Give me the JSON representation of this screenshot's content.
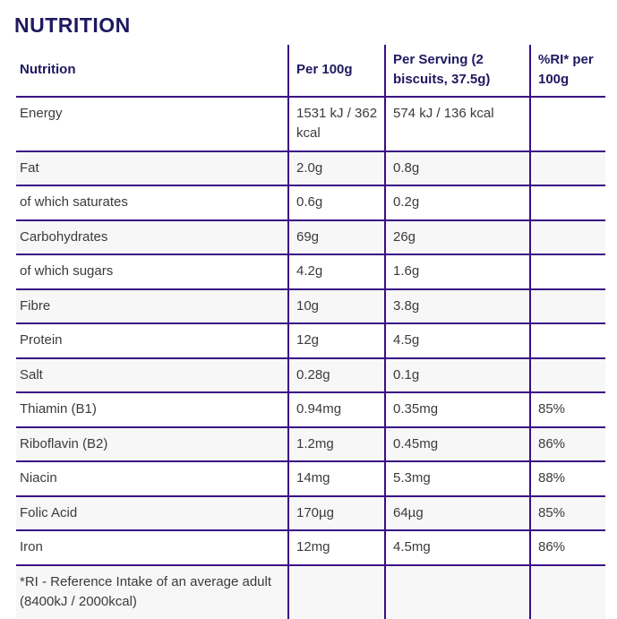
{
  "page": {
    "title": "NUTRITION"
  },
  "colors": {
    "border_purple": "#3a0e86",
    "heading_navy": "#1f1860",
    "body_text": "#3b3b3b",
    "stripe_gray": "#f7f7f7"
  },
  "table": {
    "columns": [
      "Nutrition",
      "Per 100g",
      "Per Serving (2 biscuits, 37.5g)",
      "%RI* per 100g"
    ],
    "rows": [
      {
        "label": "Energy",
        "per100g": "1531 kJ / 362 kcal",
        "perServing": "574 kJ / 136 kcal",
        "ri": ""
      },
      {
        "label": "Fat",
        "per100g": "2.0g",
        "perServing": "0.8g",
        "ri": ""
      },
      {
        "label": "of which saturates",
        "per100g": "0.6g",
        "perServing": "0.2g",
        "ri": ""
      },
      {
        "label": "Carbohydrates",
        "per100g": "69g",
        "perServing": "26g",
        "ri": ""
      },
      {
        "label": "of which sugars",
        "per100g": "4.2g",
        "perServing": "1.6g",
        "ri": ""
      },
      {
        "label": "Fibre",
        "per100g": "10g",
        "perServing": "3.8g",
        "ri": ""
      },
      {
        "label": "Protein",
        "per100g": "12g",
        "perServing": "4.5g",
        "ri": ""
      },
      {
        "label": "Salt",
        "per100g": "0.28g",
        "perServing": "0.1g",
        "ri": ""
      },
      {
        "label": "Thiamin (B1)",
        "per100g": "0.94mg",
        "perServing": "0.35mg",
        "ri": "85%"
      },
      {
        "label": "Riboflavin (B2)",
        "per100g": "1.2mg",
        "perServing": "0.45mg",
        "ri": "86%"
      },
      {
        "label": "Niacin",
        "per100g": "14mg",
        "perServing": "5.3mg",
        "ri": "88%"
      },
      {
        "label": "Folic Acid",
        "per100g": "170µg",
        "perServing": "64µg",
        "ri": "85%"
      },
      {
        "label": "Iron",
        "per100g": "12mg",
        "perServing": "4.5mg",
        "ri": "86%"
      }
    ],
    "footnote": "*RI - Reference Intake of an average adult (8400kJ / 2000kcal)"
  }
}
